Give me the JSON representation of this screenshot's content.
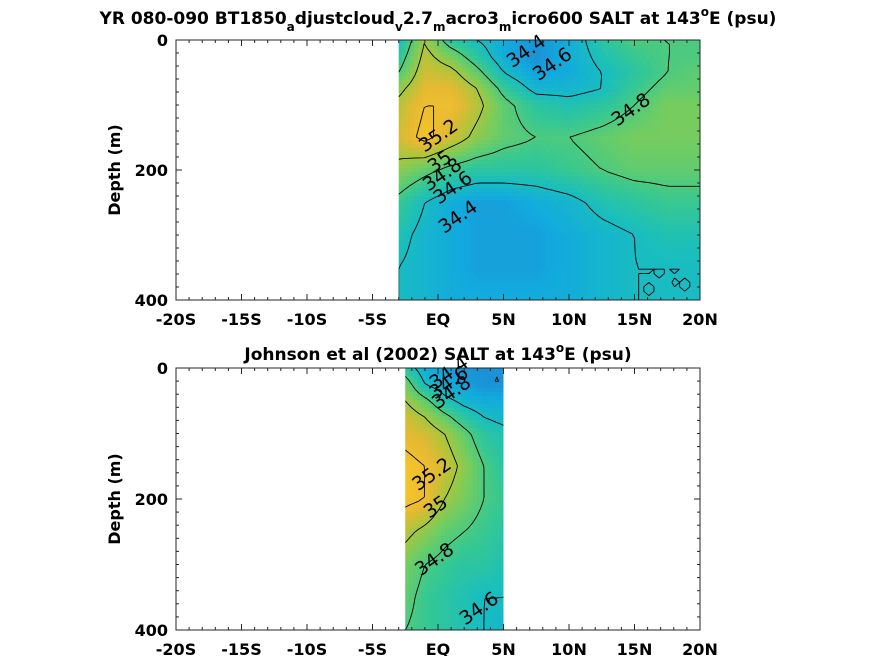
{
  "chart_data": [
    {
      "type": "heatmap",
      "subtype": "filled-contour",
      "title": {
        "prefix": "YR 080-090 BT1850",
        "parts": [
          {
            "text": "a",
            "sub": true
          },
          {
            "text": "djustcloud",
            "sub": false
          },
          {
            "text": "v",
            "sub": true
          },
          {
            "text": "2.7",
            "sub": false
          },
          {
            "text": "m",
            "sub": true
          },
          {
            "text": "acro3",
            "sub": false
          },
          {
            "text": "m",
            "sub": true
          },
          {
            "text": "icro600 SALT at 143",
            "sub": false
          },
          {
            "text": "o",
            "sup": true
          },
          {
            "text": "E (psu)",
            "sub": false
          }
        ]
      },
      "xlabel": "",
      "ylabel": "Depth (m)",
      "xlim": [
        -20,
        20
      ],
      "ylim": [
        0,
        400
      ],
      "y_reversed": true,
      "x_ticks": [
        -20,
        -15,
        -10,
        -5,
        0,
        5,
        10,
        15,
        20
      ],
      "x_ticklabels": [
        "-20S",
        "-15S",
        "-10S",
        "-5S",
        "EQ",
        "5N",
        "10N",
        "15N",
        "20N"
      ],
      "y_ticks": [
        0,
        200,
        400
      ],
      "y_ticklabels": [
        "0",
        "200",
        "400"
      ],
      "data_extent_lat": [
        -3,
        20
      ],
      "colorbar": "none",
      "salinity_grid": {
        "lat": [
          -3,
          -1,
          1,
          3,
          5,
          7.5,
          10,
          12.5,
          15,
          17.5,
          20
        ],
        "depth": [
          0,
          25,
          50,
          75,
          100,
          150,
          200,
          250,
          300,
          350,
          400
        ],
        "values": [
          [
            34.6,
            35.0,
            34.7,
            34.6,
            34.5,
            34.4,
            34.5,
            34.7,
            34.8,
            34.8,
            34.8
          ],
          [
            34.7,
            35.05,
            34.9,
            34.7,
            34.5,
            34.4,
            34.5,
            34.65,
            34.75,
            34.8,
            34.8
          ],
          [
            34.8,
            35.1,
            35.05,
            34.85,
            34.6,
            34.45,
            34.5,
            34.6,
            34.7,
            34.8,
            34.85
          ],
          [
            34.95,
            35.15,
            35.15,
            35.0,
            34.75,
            34.55,
            34.55,
            34.6,
            34.75,
            34.85,
            34.85
          ],
          [
            35.05,
            35.2,
            35.2,
            35.05,
            34.85,
            34.7,
            34.65,
            34.7,
            34.8,
            34.9,
            34.9
          ],
          [
            35.1,
            35.25,
            35.1,
            34.95,
            34.85,
            34.8,
            34.8,
            34.85,
            34.9,
            34.9,
            34.9
          ],
          [
            34.95,
            34.85,
            34.75,
            34.7,
            34.7,
            34.7,
            34.75,
            34.8,
            34.85,
            34.85,
            34.85
          ],
          [
            34.75,
            34.6,
            34.5,
            34.45,
            34.45,
            34.5,
            34.55,
            34.65,
            34.7,
            34.75,
            34.75
          ],
          [
            34.65,
            34.55,
            34.5,
            34.45,
            34.45,
            34.45,
            34.5,
            34.55,
            34.6,
            34.65,
            34.65
          ],
          [
            34.6,
            34.55,
            34.5,
            34.45,
            34.45,
            34.45,
            34.5,
            34.55,
            34.6,
            34.6,
            34.6
          ],
          [
            34.6,
            34.55,
            34.5,
            34.5,
            34.5,
            34.5,
            34.5,
            34.55,
            34.6,
            34.6,
            34.6
          ]
        ]
      },
      "contour_levels": [
        34.4,
        34.6,
        34.8,
        35.0,
        35.2
      ],
      "contour_labels": [
        {
          "text": "34.4",
          "lat": 7,
          "depth": 25
        },
        {
          "text": "34.6",
          "lat": 9,
          "depth": 45
        },
        {
          "text": "34.8",
          "lat": 15,
          "depth": 115
        },
        {
          "text": "35.2",
          "lat": 0.3,
          "depth": 155
        },
        {
          "text": "35",
          "lat": 0.4,
          "depth": 195
        },
        {
          "text": "34.8",
          "lat": 0.6,
          "depth": 215
        },
        {
          "text": "34.6",
          "lat": 1.4,
          "depth": 235
        },
        {
          "text": "34.4",
          "lat": 1.8,
          "depth": 280
        }
      ]
    },
    {
      "type": "heatmap",
      "subtype": "filled-contour",
      "title": {
        "prefix": "Johnson et al (2002) SALT at 143",
        "parts": [
          {
            "text": "o",
            "sup": true
          },
          {
            "text": "E (psu)",
            "sub": false
          }
        ]
      },
      "xlabel": "",
      "ylabel": "Depth (m)",
      "xlim": [
        -20,
        20
      ],
      "ylim": [
        0,
        400
      ],
      "y_reversed": true,
      "x_ticks": [
        -20,
        -15,
        -10,
        -5,
        0,
        5,
        10,
        15,
        20
      ],
      "x_ticklabels": [
        "-20S",
        "-15S",
        "-10S",
        "-5S",
        "EQ",
        "5N",
        "10N",
        "15N",
        "20N"
      ],
      "y_ticks": [
        0,
        200,
        400
      ],
      "y_ticklabels": [
        "0",
        "200",
        "400"
      ],
      "data_extent_lat": [
        -2.5,
        5
      ],
      "colorbar": "none",
      "salinity_grid": {
        "lat": [
          -2.5,
          -1,
          0.5,
          2,
          3.5,
          5
        ],
        "depth": [
          0,
          25,
          50,
          75,
          100,
          150,
          200,
          250,
          300,
          350,
          400
        ],
        "values": [
          [
            34.7,
            34.5,
            34.45,
            34.4,
            34.4,
            34.4
          ],
          [
            34.9,
            34.6,
            34.5,
            34.45,
            34.4,
            34.4
          ],
          [
            35.0,
            34.85,
            34.65,
            34.55,
            34.5,
            34.5
          ],
          [
            35.1,
            35.0,
            34.85,
            34.7,
            34.6,
            34.55
          ],
          [
            35.15,
            35.1,
            35.0,
            34.85,
            34.7,
            34.65
          ],
          [
            35.25,
            35.2,
            35.1,
            34.95,
            34.8,
            34.7
          ],
          [
            35.25,
            35.2,
            35.0,
            34.9,
            34.8,
            34.75
          ],
          [
            35.05,
            34.95,
            34.85,
            34.8,
            34.75,
            34.7
          ],
          [
            34.9,
            34.8,
            34.75,
            34.7,
            34.7,
            34.65
          ],
          [
            34.85,
            34.75,
            34.7,
            34.65,
            34.6,
            34.6
          ],
          [
            34.8,
            34.75,
            34.7,
            34.65,
            34.6,
            34.55
          ]
        ]
      },
      "contour_levels": [
        34.4,
        34.6,
        34.8,
        35.0,
        35.2
      ],
      "contour_labels": [
        {
          "text": "34.4",
          "lat": 1.1,
          "depth": 15
        },
        {
          "text": "34.6",
          "lat": 1.1,
          "depth": 30
        },
        {
          "text": "34.8",
          "lat": 1.3,
          "depth": 45
        },
        {
          "text": "35.2",
          "lat": -0.2,
          "depth": 170
        },
        {
          "text": "35",
          "lat": 0.1,
          "depth": 220
        },
        {
          "text": "34.8",
          "lat": 0,
          "depth": 300
        },
        {
          "text": "34.6",
          "lat": 3.4,
          "depth": 375
        }
      ]
    }
  ]
}
